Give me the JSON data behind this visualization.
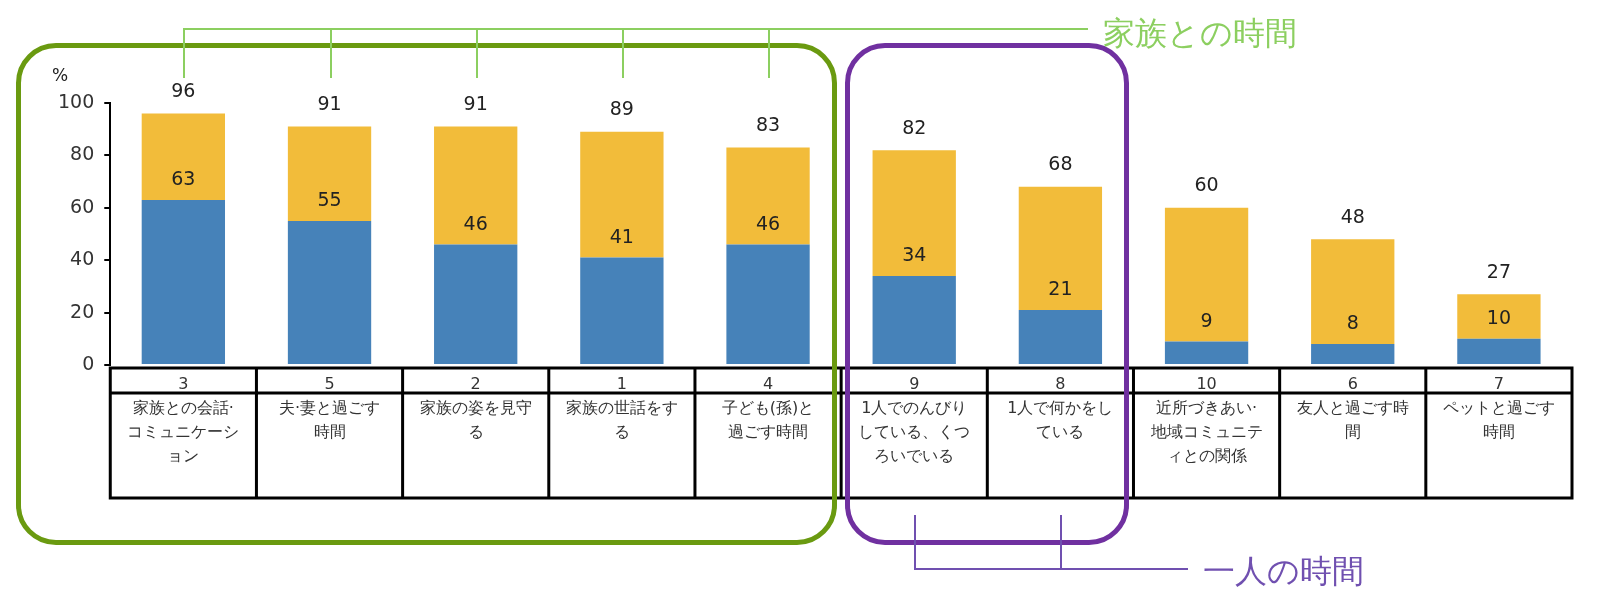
{
  "chart_data": {
    "type": "bar",
    "stacked": true,
    "ylabel": "%",
    "categories": [
      "3\n家族との会話·コミュニケーション",
      "5\n夫·妻と過ごす時間",
      "2\n家族の姿を見守る",
      "1\n家族の世話をする",
      "4\n子ども(孫)と過ごす時間",
      "9\n1人でのんびりしている、くつろいでいる",
      "8\n1人で何かをしている",
      "10\n近所づきあい·地域コミュニティとの関係",
      "6\n友人と過ごす時間",
      "7\nペットと過ごす時間"
    ],
    "series": [
      {
        "color": "#4682b9",
        "values": [
          63,
          55,
          46,
          41,
          46,
          34,
          21,
          9,
          8,
          10
        ],
        "value_labels": [
          "63",
          "55",
          "46",
          "41",
          "46",
          "34",
          "21",
          "9",
          "8",
          "10"
        ]
      },
      {
        "color": "#f2bc3a",
        "values": [
          33,
          36,
          45,
          48,
          37,
          48,
          47,
          51,
          40,
          17
        ]
      }
    ],
    "totals": [
      "96",
      "91",
      "91",
      "89",
      "83",
      "82",
      "68",
      "60",
      "48",
      "27"
    ],
    "ylim": [
      0,
      100
    ],
    "yticks": [
      0,
      20,
      40,
      60,
      80,
      100
    ],
    "grid": false,
    "legend": false,
    "annotations": [
      "家族との時間",
      "一人の時間"
    ]
  }
}
